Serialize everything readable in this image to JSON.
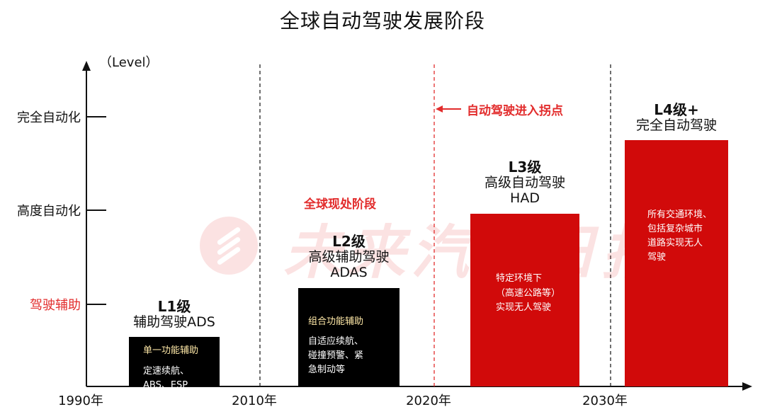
{
  "chart_data": {
    "type": "bar",
    "title": "全球自动驾驶发展阶段",
    "ylabel": "（Level）",
    "y_levels": [
      {
        "label": "驾驶辅助",
        "accent": true
      },
      {
        "label": "高度自动化",
        "accent": false
      },
      {
        "label": "完全自动化",
        "accent": false
      }
    ],
    "x_ticks": [
      "1990年",
      "2010年",
      "2020年",
      "2030年"
    ],
    "x_tick_values": [
      1990,
      2010,
      2020,
      2030
    ],
    "xlim": [
      1990,
      2038
    ],
    "stages": [
      {
        "level": "L1级",
        "name": "辅助驾驶ADS",
        "abbr": "",
        "start": 1994.7,
        "end": 2005.2,
        "value": 0.6,
        "color": "#000000",
        "lines": [
          "单一功能辅助",
          "",
          "定速续航、",
          "ABS、ESP"
        ],
        "highlight": [
          0
        ]
      },
      {
        "level": "L2级",
        "name": "高级辅助驾驶",
        "abbr": "ADAS",
        "start": 2014.2,
        "end": 2025.7,
        "value": 1.2,
        "color": "#000000",
        "lines": [
          "组合功能辅助",
          "",
          "自适应续航、",
          "碰撞预警、紧",
          "急制动等"
        ],
        "highlight": [
          0
        ]
      },
      {
        "level": "L3级",
        "name": "高级自动驾驶",
        "abbr": "HAD",
        "start": 2034.0,
        "end": 2046.5,
        "value": 2.1,
        "color": "#d10a0a",
        "lines": [
          "特定环境下",
          "（高速公路等）",
          "实现无人驾驶"
        ],
        "highlight": []
      },
      {
        "level": "L4级+",
        "name": "完全自动驾驶",
        "abbr": "",
        "start": 2051.6,
        "end": 2063.4,
        "value": 3.0,
        "color": "#d10a0a",
        "lines": [
          "所有交通环境、",
          "包括复杂城市",
          "道路实现无人",
          "驾驶"
        ],
        "highlight": []
      }
    ],
    "annotations": [
      {
        "text": "全球现处阶段",
        "stage": 1
      },
      {
        "text": "自动驾驶进入拐点",
        "x": 2020,
        "arrow": "left"
      }
    ],
    "watermark": "未来汽车日报",
    "colors": {
      "accent": "#e22c2c",
      "bar_dark": "#000000",
      "bar_red": "#d10a0a"
    }
  }
}
